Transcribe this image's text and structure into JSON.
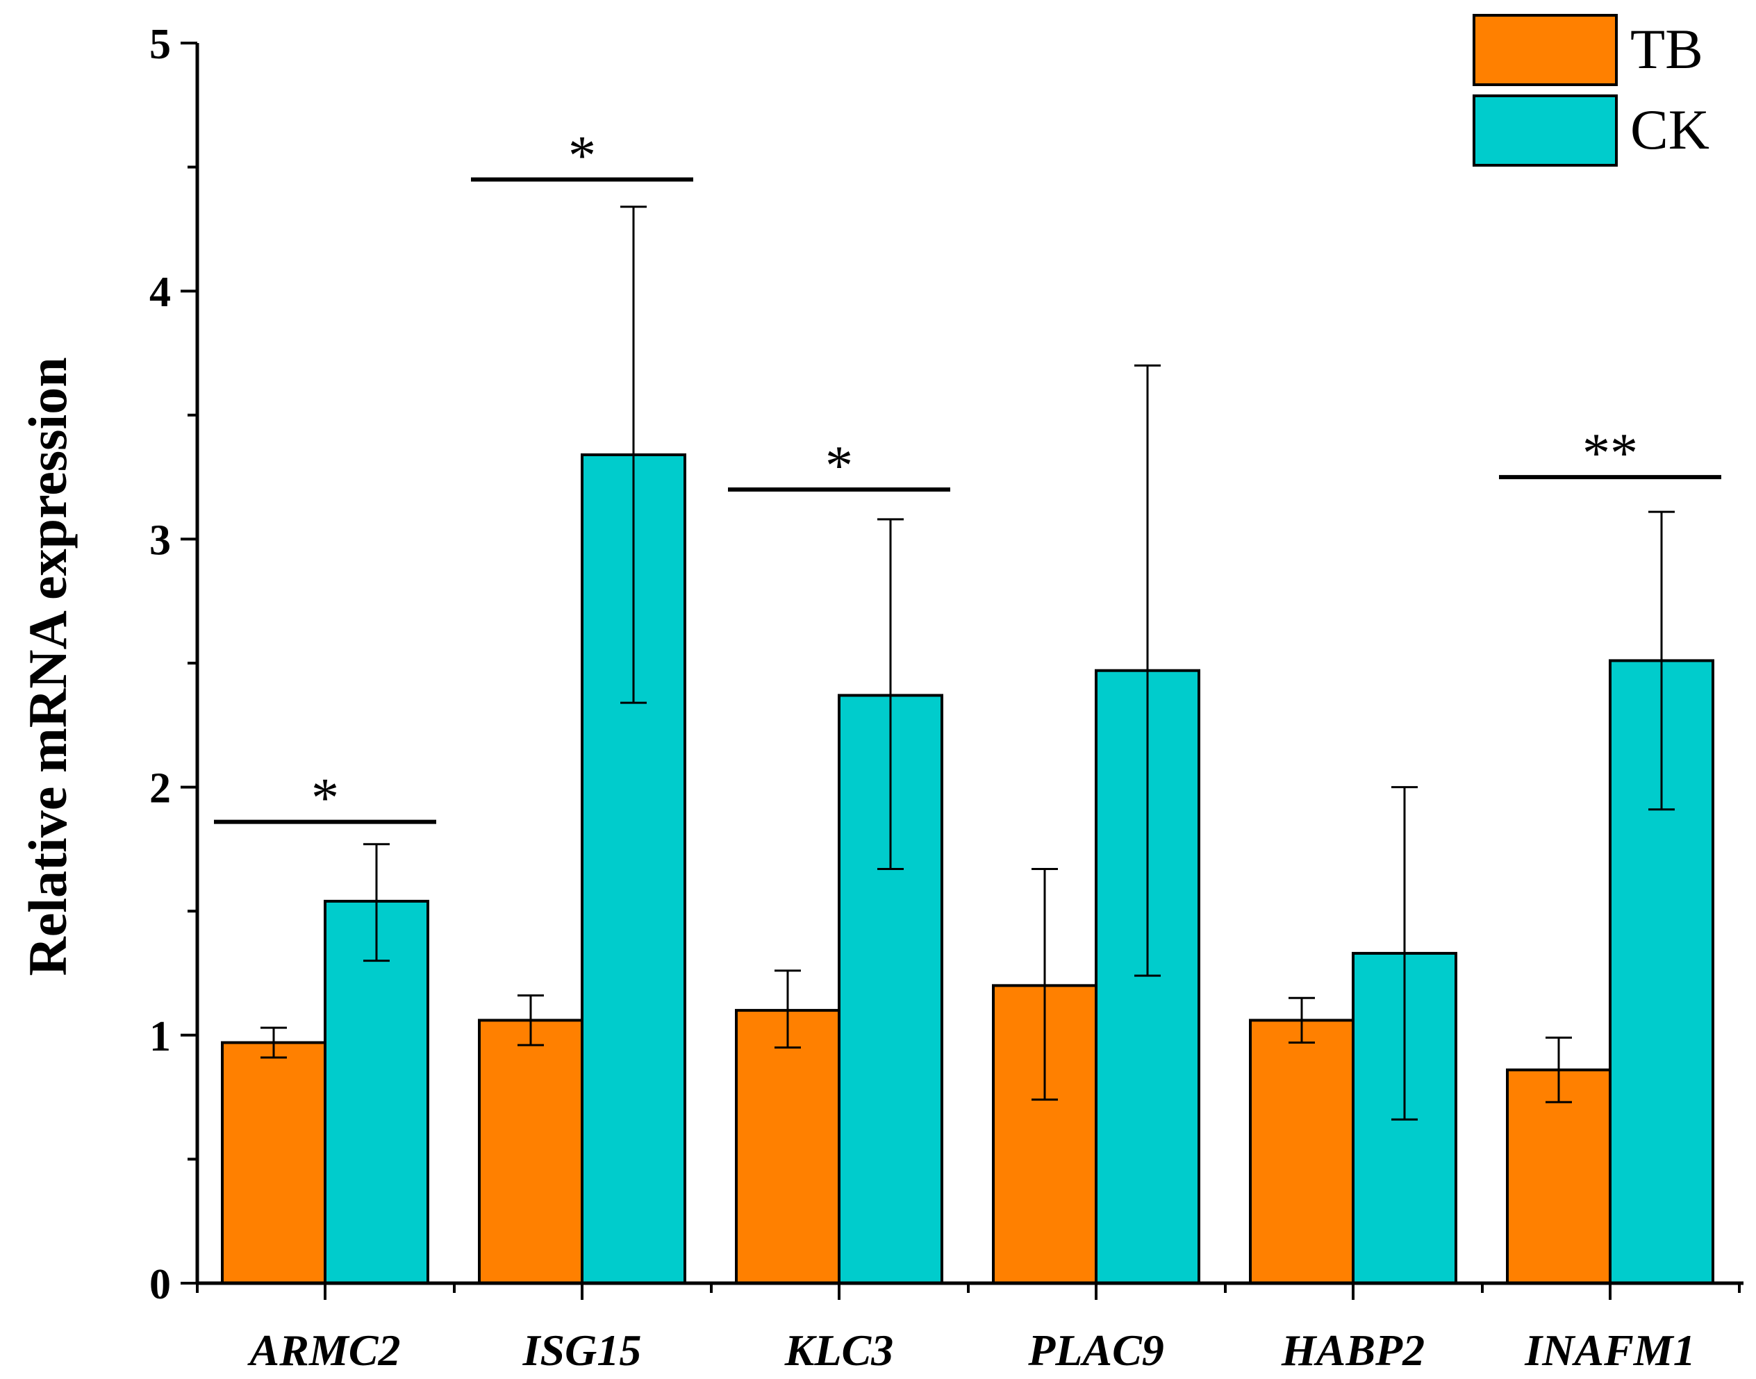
{
  "chart_data": {
    "type": "bar",
    "title": "",
    "xlabel": "",
    "ylabel": "Relative mRNA expression",
    "ylim": [
      0,
      5
    ],
    "yticks": [
      {
        "value": 0,
        "label": "0"
      },
      {
        "value": 1,
        "label": "1"
      },
      {
        "value": 2,
        "label": "2"
      },
      {
        "value": 3,
        "label": "3"
      },
      {
        "value": 4,
        "label": "4"
      },
      {
        "value": 5,
        "label": "5"
      }
    ],
    "categories": [
      "ARMC2",
      "ISG15",
      "KLC3",
      "PLAC9",
      "HABP2",
      "INAFM1"
    ],
    "series": [
      {
        "name": "TB",
        "color": "#FF8000",
        "values": [
          0.97,
          1.06,
          1.1,
          1.2,
          1.06,
          0.86
        ],
        "error_low": [
          0.91,
          0.96,
          0.95,
          0.74,
          0.97,
          0.73
        ],
        "error_high": [
          1.03,
          1.16,
          1.26,
          1.67,
          1.15,
          0.99
        ]
      },
      {
        "name": "CK",
        "color": "#00CCCC",
        "values": [
          1.54,
          3.34,
          2.37,
          2.47,
          1.33,
          2.51
        ],
        "error_low": [
          1.3,
          2.34,
          1.67,
          1.24,
          0.66,
          1.91
        ],
        "error_high": [
          1.77,
          4.34,
          3.08,
          3.7,
          2.0,
          3.11
        ]
      }
    ],
    "significance": [
      {
        "category": "ARMC2",
        "label": "*",
        "level": 1.86
      },
      {
        "category": "ISG15",
        "label": "*",
        "level": 4.45
      },
      {
        "category": "KLC3",
        "label": "*",
        "level": 3.2
      },
      {
        "category": "INAFM1",
        "label": "**",
        "level": 3.25
      }
    ],
    "legend": {
      "position": "top-right",
      "entries": [
        "TB",
        "CK"
      ]
    },
    "grid": false
  }
}
